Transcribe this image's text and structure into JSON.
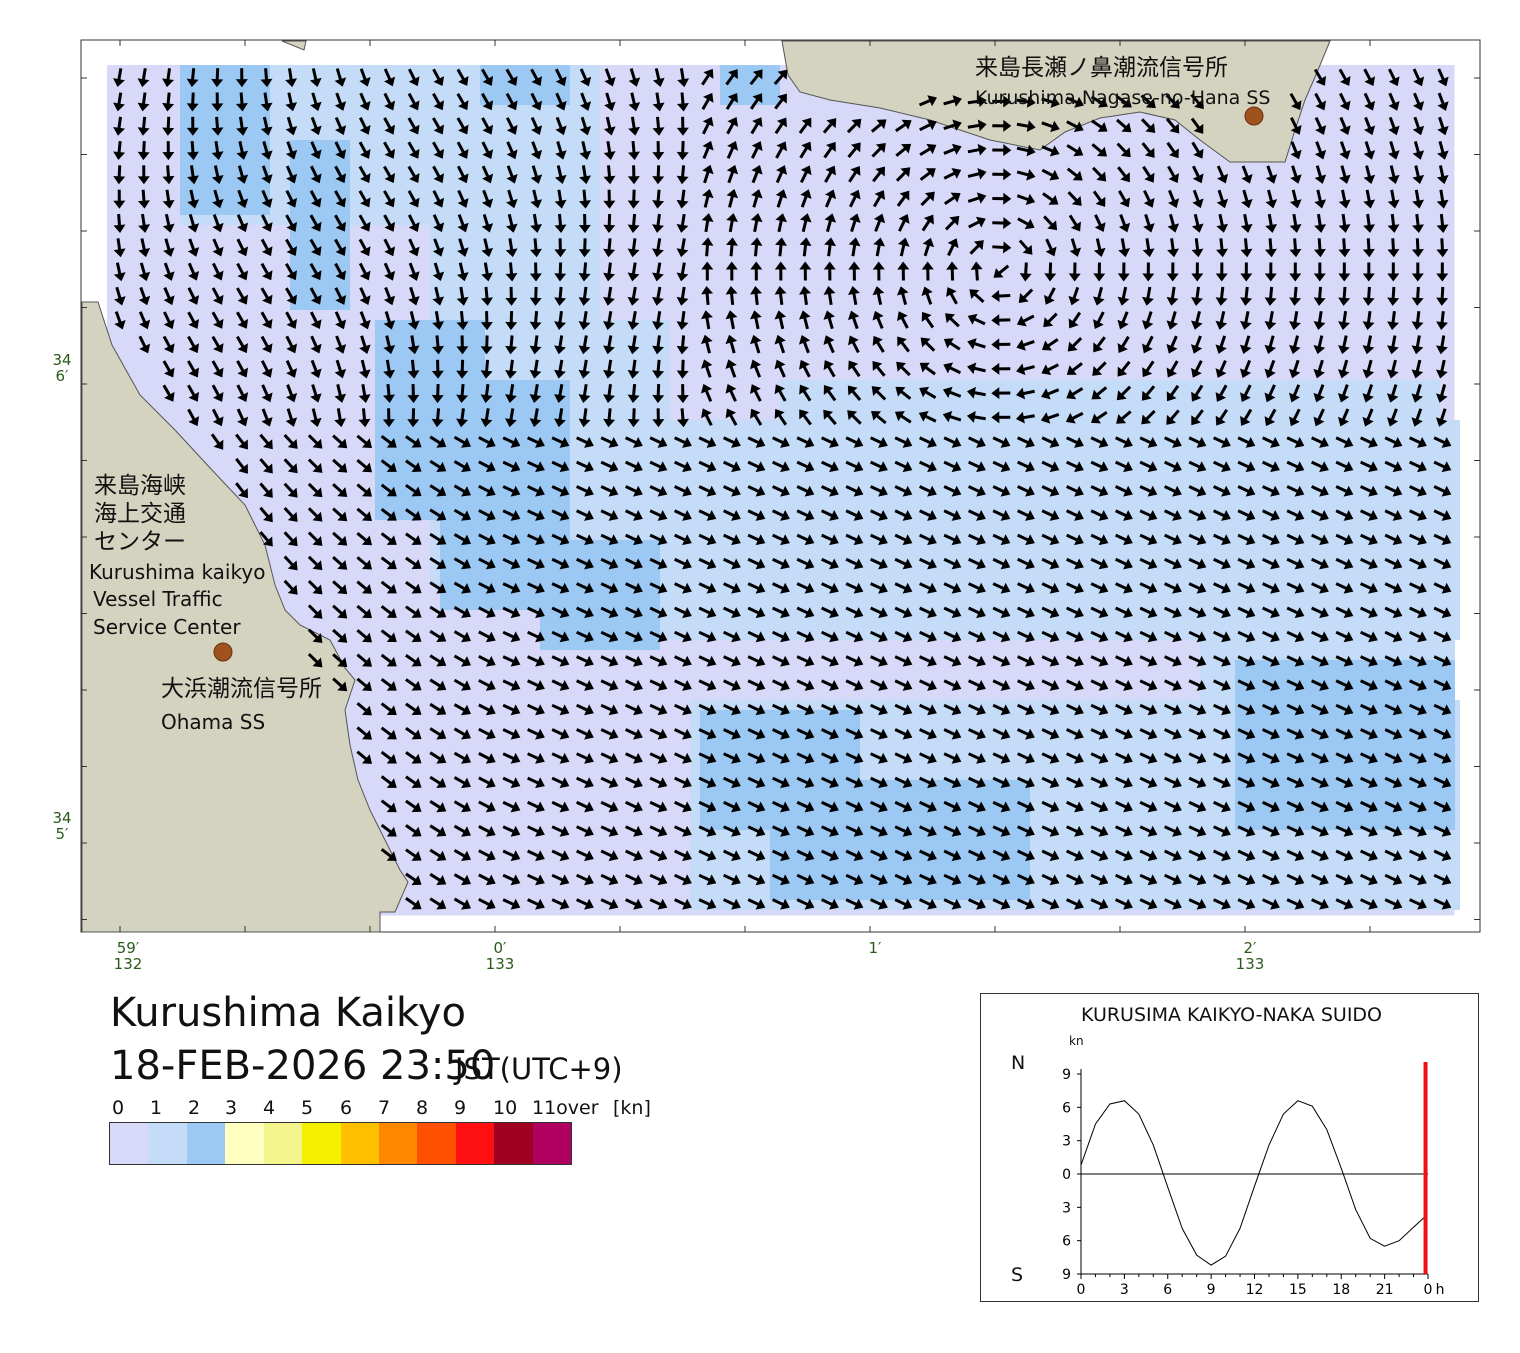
{
  "map": {
    "title": "Kurushima Kaikyo",
    "datetime": "18-FEB-2026 23:50",
    "timezone": "JST(UTC+9)",
    "colors": {
      "land": "#d4d3c0",
      "water_low": "#d8d8f8",
      "water_mid": "#c4dcf8",
      "water_high": "#9cc8f4",
      "arrow": "#000000",
      "station": "#a0521d"
    },
    "stations": {
      "nagase": {
        "name_ja": "来島長瀬ノ鼻潮流信号所",
        "name_en": "Kurushima Nagase-no-Hana SS"
      },
      "vts": {
        "name_ja_1": "来島海峡",
        "name_ja_2": "海上交通",
        "name_ja_3": "センター",
        "name_en_1": "Kurushima kaikyo",
        "name_en_2": "Vessel Traffic",
        "name_en_3": "Service Center"
      },
      "ohama": {
        "name_ja": "大浜潮流信号所",
        "name_en": "Ohama SS"
      }
    },
    "lat_labels": [
      {
        "deg": "34",
        "min": "6′"
      },
      {
        "deg": "34",
        "min": "5′"
      }
    ],
    "lon_labels": [
      {
        "min": "59′",
        "deg": "132"
      },
      {
        "min": "0′",
        "deg": "133"
      },
      {
        "min": "1′",
        "deg": ""
      },
      {
        "min": "2′",
        "deg": "133"
      }
    ]
  },
  "legend": {
    "unit": "[kn]",
    "ticks": [
      "0",
      "1",
      "2",
      "3",
      "4",
      "5",
      "6",
      "7",
      "8",
      "9",
      "10",
      "11over"
    ],
    "colors": [
      "#d8d8f8",
      "#c4dcf8",
      "#9cc8f4",
      "#ffffc0",
      "#f4f48c",
      "#f4f000",
      "#ffc000",
      "#ff8800",
      "#ff5000",
      "#ff1010",
      "#a00020",
      "#b00060"
    ]
  },
  "tide_chart": {
    "title": "KURUSIMA KAIKYO-NAKA SUIDO",
    "unit": "kn",
    "north_label": "N",
    "south_label": "S",
    "y_tick_labels": [
      "9",
      "6",
      "3",
      "0",
      "3",
      "6",
      "9"
    ],
    "x_tick_labels": [
      "0",
      "3",
      "6",
      "9",
      "12",
      "15",
      "18",
      "21",
      "0",
      "h"
    ],
    "current_time_hours": 23.83,
    "chart_data": {
      "type": "line",
      "xlabel": "h",
      "ylabel": "kn",
      "ylim": [
        -9,
        9
      ],
      "xlim": [
        0,
        24
      ],
      "series": [
        {
          "x": [
            0,
            1,
            2,
            3,
            4,
            5,
            6,
            7,
            8,
            9,
            10,
            11,
            12,
            13,
            14,
            15,
            16,
            17,
            18,
            19,
            20,
            21,
            22,
            23,
            23.83
          ],
          "values": [
            0.8,
            4.5,
            6.3,
            6.6,
            5.4,
            2.6,
            -1.2,
            -4.9,
            -7.3,
            -8.2,
            -7.4,
            -4.9,
            -1.1,
            2.6,
            5.4,
            6.6,
            6.1,
            4.0,
            0.5,
            -3.2,
            -5.8,
            -6.5,
            -6.0,
            -4.8,
            -3.8
          ]
        }
      ]
    }
  }
}
